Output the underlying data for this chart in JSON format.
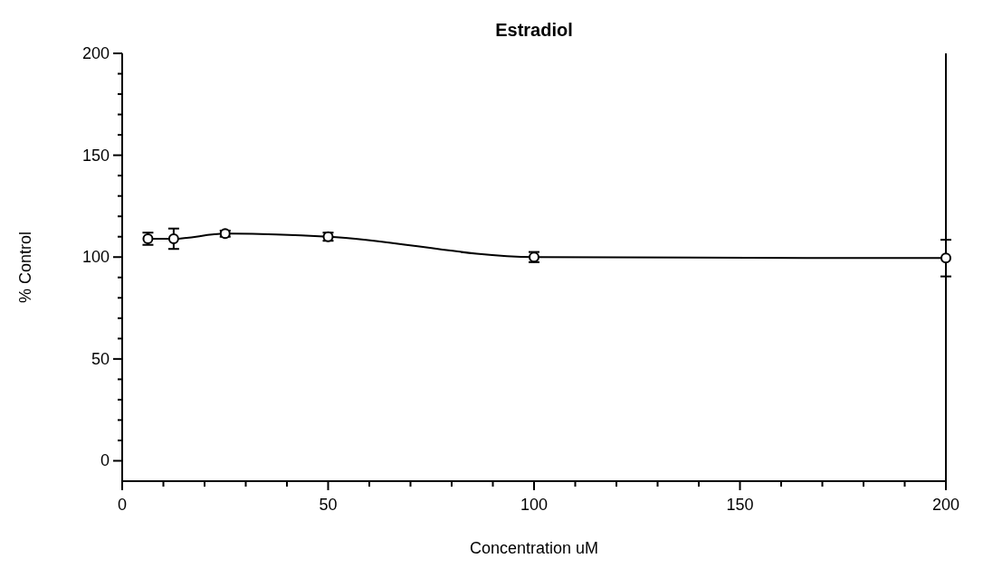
{
  "chart_data": {
    "type": "line",
    "title": "Estradiol",
    "xlabel": "Concentration uM",
    "ylabel": "% Control",
    "x": [
      6.25,
      12.5,
      25,
      50,
      100,
      200
    ],
    "series": [
      {
        "color": "#000000",
        "values": [
          109,
          109,
          111.5,
          110,
          100,
          99.5
        ],
        "errors": [
          3,
          5,
          1.5,
          2,
          2.5,
          9
        ]
      }
    ],
    "xlim": [
      0,
      200
    ],
    "ylim": [
      -10,
      200
    ],
    "xticks": [
      0,
      {
        "value": 10,
        "label": null
      },
      {
        "value": 20,
        "label": null
      },
      {
        "value": 30,
        "label": null
      },
      {
        "value": 40,
        "label": null
      },
      50,
      {
        "value": 60,
        "label": null
      },
      {
        "value": 70,
        "label": null
      },
      {
        "value": 80,
        "label": null
      },
      {
        "value": 90,
        "label": null
      },
      100,
      {
        "value": 110,
        "label": null
      },
      {
        "value": 120,
        "label": null
      },
      {
        "value": 130,
        "label": null
      },
      {
        "value": 140,
        "label": null
      },
      150,
      {
        "value": 160,
        "label": null
      },
      {
        "value": 170,
        "label": null
      },
      {
        "value": 180,
        "label": null
      },
      {
        "value": 190,
        "label": null
      },
      200
    ],
    "yticks": [
      0,
      {
        "value": 10,
        "label": null
      },
      {
        "value": 20,
        "label": null
      },
      {
        "value": 30,
        "label": null
      },
      {
        "value": 40,
        "label": null
      },
      50,
      {
        "value": 60,
        "label": null
      },
      {
        "value": 70,
        "label": null
      },
      {
        "value": 80,
        "label": null
      },
      {
        "value": 90,
        "label": null
      },
      100,
      {
        "value": 110,
        "label": null
      },
      {
        "value": 120,
        "label": null
      },
      {
        "value": 130,
        "label": null
      },
      {
        "value": 140,
        "label": null
      },
      150,
      {
        "value": 160,
        "label": null
      },
      {
        "value": 170,
        "label": null
      },
      {
        "value": 180,
        "label": null
      },
      {
        "value": 190,
        "label": null
      },
      200
    ],
    "grid": false,
    "marker": "circle",
    "line_style": "solid"
  }
}
